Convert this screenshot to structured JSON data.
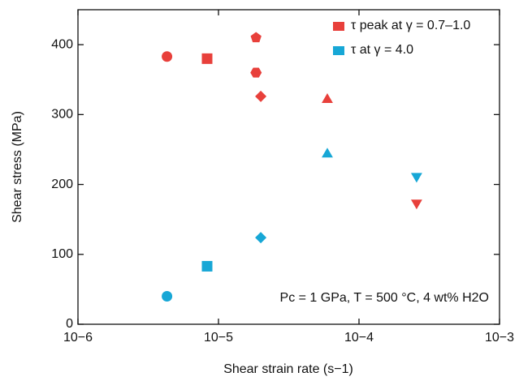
{
  "chart_data": {
    "type": "scatter",
    "x_label": "Shear strain rate (s−1)",
    "y_label": "Shear stress (MPa)",
    "annotation": "Pc = 1 GPa, T = 500 °C, 4 wt% H2O",
    "xscale": "log",
    "xlim": [
      1e-06,
      0.001
    ],
    "xticks": [
      {
        "value": 1e-06,
        "label": "10−6"
      },
      {
        "value": 1e-05,
        "label": "10−5"
      },
      {
        "value": 0.0001,
        "label": "10−4"
      },
      {
        "value": 0.001,
        "label": "10−3"
      }
    ],
    "ylim": [
      0,
      450
    ],
    "yticks": [
      0,
      100,
      200,
      300,
      400
    ],
    "legend": "upper right",
    "series": [
      {
        "name": "τ peak at γ = 0.7–1.0",
        "color": "#e8403b",
        "x": [
          4.3e-06,
          8.3e-06,
          1.85e-05,
          1.85e-05,
          2e-05,
          5.95e-05,
          0.000257
        ],
        "values": [
          383,
          380,
          410,
          360,
          326,
          323,
          172
        ],
        "markers": [
          "circle",
          "square",
          "pentagon",
          "hexagon",
          "diamond",
          "triangle-up",
          "triangle-down"
        ]
      },
      {
        "name": "τ at γ = 4.0",
        "color": "#17a7d6",
        "x": [
          4.3e-06,
          8.3e-06,
          2e-05,
          5.95e-05,
          0.000257
        ],
        "values": [
          40,
          83,
          124,
          245,
          210
        ],
        "markers": [
          "circle",
          "square",
          "diamond",
          "triangle-up",
          "triangle-down"
        ]
      }
    ]
  }
}
